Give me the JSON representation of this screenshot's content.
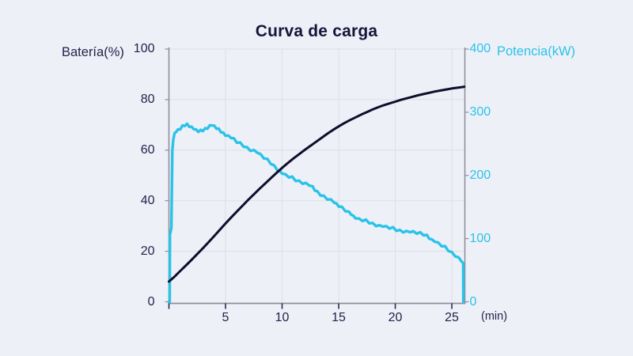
{
  "page": {
    "background": "#eef0f8"
  },
  "chart_data": {
    "type": "line",
    "title": "Curva de carga",
    "x_label": "(min)",
    "x_ticks": [
      5,
      10,
      15,
      20,
      25
    ],
    "x_axis_tick_marks": [
      0,
      5,
      10,
      15,
      20,
      25
    ],
    "x_range": [
      0,
      26.15
    ],
    "grid": true,
    "legend": "none",
    "left_axis": {
      "label": "Batería(%)",
      "ticks": [
        0,
        20,
        40,
        60,
        80,
        100
      ],
      "range": [
        0,
        100
      ]
    },
    "right_axis": {
      "label": "Potencia(kW)",
      "ticks": [
        0,
        100,
        200,
        300,
        400
      ],
      "range": [
        0,
        400
      ]
    },
    "colors": {
      "battery": "#0e0e2c",
      "power": "#2ac3e8",
      "grid": "#dcdee9",
      "axis": "#8f8f9c",
      "tick": "#2b2b4e",
      "text": "#23234a",
      "title": "#15153a"
    },
    "series": [
      {
        "name": "Batería",
        "axis": "left",
        "color_key": "battery",
        "width": 3,
        "jitter": 0,
        "points": [
          [
            0,
            8
          ],
          [
            0.5,
            10
          ],
          [
            1,
            12.2
          ],
          [
            1.5,
            14.4
          ],
          [
            2,
            16.6
          ],
          [
            2.5,
            18.9
          ],
          [
            3,
            21.2
          ],
          [
            3.5,
            23.6
          ],
          [
            4,
            26
          ],
          [
            4.5,
            28.5
          ],
          [
            5,
            31
          ],
          [
            5.5,
            33.4
          ],
          [
            6,
            35.7
          ],
          [
            6.5,
            38
          ],
          [
            7,
            40.3
          ],
          [
            7.5,
            42.5
          ],
          [
            8,
            44.7
          ],
          [
            8.5,
            46.8
          ],
          [
            9,
            48.9
          ],
          [
            9.5,
            51
          ],
          [
            10,
            53
          ],
          [
            10.5,
            54.9
          ],
          [
            11,
            56.7
          ],
          [
            11.5,
            58.4
          ],
          [
            12,
            60.1
          ],
          [
            12.5,
            61.7
          ],
          [
            13,
            63.3
          ],
          [
            13.5,
            64.9
          ],
          [
            14,
            66.5
          ],
          [
            14.5,
            68
          ],
          [
            15,
            69.4
          ],
          [
            15.5,
            70.7
          ],
          [
            16,
            71.9
          ],
          [
            16.5,
            73
          ],
          [
            17,
            74.1
          ],
          [
            17.5,
            75.1
          ],
          [
            18,
            76.1
          ],
          [
            18.5,
            77
          ],
          [
            19,
            77.8
          ],
          [
            19.5,
            78.5
          ],
          [
            20,
            79.2
          ],
          [
            20.5,
            79.9
          ],
          [
            21,
            80.5
          ],
          [
            21.5,
            81.1
          ],
          [
            22,
            81.7
          ],
          [
            22.5,
            82.2
          ],
          [
            23,
            82.7
          ],
          [
            23.5,
            83.2
          ],
          [
            24,
            83.6
          ],
          [
            24.5,
            84
          ],
          [
            25,
            84.4
          ],
          [
            25.5,
            84.7
          ],
          [
            26,
            85
          ],
          [
            26.1,
            85.1
          ]
        ]
      },
      {
        "name": "Potencia",
        "axis": "right",
        "color_key": "power",
        "width": 3.4,
        "jitter": 1,
        "points": [
          [
            0,
            0
          ],
          [
            0.07,
            0
          ],
          [
            0.09,
            106
          ],
          [
            0.16,
            112
          ],
          [
            0.22,
            117
          ],
          [
            0.3,
            238
          ],
          [
            0.38,
            258
          ],
          [
            0.5,
            266
          ],
          [
            0.65,
            269
          ],
          [
            0.8,
            271
          ],
          [
            1,
            274
          ],
          [
            1.2,
            277
          ],
          [
            1.4,
            280
          ],
          [
            1.6,
            281
          ],
          [
            1.8,
            279
          ],
          [
            2,
            276
          ],
          [
            2.2,
            273
          ],
          [
            2.4,
            271
          ],
          [
            2.6,
            270
          ],
          [
            2.8,
            270
          ],
          [
            3,
            272
          ],
          [
            3.2,
            274
          ],
          [
            3.4,
            276
          ],
          [
            3.6,
            278
          ],
          [
            3.8,
            279
          ],
          [
            4,
            277
          ],
          [
            4.2,
            275
          ],
          [
            4.4,
            272
          ],
          [
            4.6,
            270
          ],
          [
            4.8,
            267
          ],
          [
            5,
            265
          ],
          [
            5.25,
            262
          ],
          [
            5.5,
            259
          ],
          [
            5.75,
            257
          ],
          [
            6,
            253
          ],
          [
            6.3,
            250
          ],
          [
            6.6,
            247
          ],
          [
            6.9,
            244
          ],
          [
            7.2,
            241
          ],
          [
            7.5,
            239
          ],
          [
            7.8,
            236
          ],
          [
            8.1,
            232
          ],
          [
            8.4,
            228
          ],
          [
            8.7,
            224
          ],
          [
            9,
            220
          ],
          [
            9.3,
            215
          ],
          [
            9.6,
            210
          ],
          [
            9.8,
            206
          ],
          [
            10,
            203
          ],
          [
            10.3,
            200
          ],
          [
            10.6,
            198
          ],
          [
            10.9,
            196
          ],
          [
            11.2,
            193
          ],
          [
            11.5,
            191
          ],
          [
            11.8,
            189
          ],
          [
            12.1,
            187
          ],
          [
            12.4,
            184
          ],
          [
            12.7,
            181
          ],
          [
            12.9,
            177
          ],
          [
            13.1,
            173
          ],
          [
            13.4,
            170
          ],
          [
            13.7,
            167
          ],
          [
            14,
            164
          ],
          [
            14.3,
            161
          ],
          [
            14.6,
            157
          ],
          [
            14.8,
            154
          ],
          [
            15,
            152
          ],
          [
            15.3,
            148
          ],
          [
            15.6,
            145
          ],
          [
            15.9,
            142
          ],
          [
            16.1,
            140
          ],
          [
            16.3,
            135
          ],
          [
            16.5,
            132
          ],
          [
            16.8,
            130
          ],
          [
            17.1,
            129
          ],
          [
            17.4,
            128
          ],
          [
            17.7,
            126
          ],
          [
            18,
            124
          ],
          [
            18.3,
            122
          ],
          [
            18.6,
            120
          ],
          [
            18.9,
            119
          ],
          [
            19.2,
            118
          ],
          [
            19.5,
            117
          ],
          [
            19.8,
            116
          ],
          [
            20.1,
            114
          ],
          [
            20.4,
            113
          ],
          [
            20.7,
            112
          ],
          [
            21,
            111
          ],
          [
            21.3,
            110
          ],
          [
            21.6,
            110
          ],
          [
            21.9,
            109
          ],
          [
            22.2,
            108
          ],
          [
            22.5,
            107
          ],
          [
            22.8,
            105
          ],
          [
            23,
            102
          ],
          [
            23.2,
            98
          ],
          [
            23.5,
            95
          ],
          [
            23.8,
            92
          ],
          [
            24.1,
            89
          ],
          [
            24.4,
            86
          ],
          [
            24.7,
            82
          ],
          [
            25,
            78
          ],
          [
            25.3,
            74
          ],
          [
            25.6,
            69
          ],
          [
            25.85,
            64
          ],
          [
            26,
            61
          ],
          [
            26.02,
            0
          ]
        ]
      }
    ]
  }
}
